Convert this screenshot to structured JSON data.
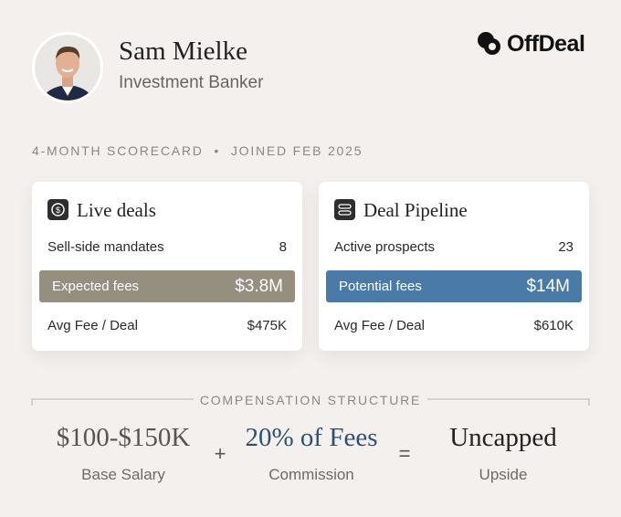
{
  "profile": {
    "name": "Sam Mielke",
    "role": "Investment Banker"
  },
  "logo": {
    "text": "OffDeal"
  },
  "scorecard": {
    "period": "4-MONTH SCORECARD",
    "separator": "•",
    "joined": "JOINED FEB 2025"
  },
  "cards": [
    {
      "title": "Live deals",
      "rows": [
        [
          "Sell-side mandates",
          "8"
        ],
        [
          "Expected fees",
          "$3.8M"
        ],
        [
          "Avg Fee / Deal",
          "$475K"
        ]
      ]
    },
    {
      "title": "Deal Pipeline",
      "rows": [
        [
          "Active prospects",
          "23"
        ],
        [
          "Potential fees",
          "$14M"
        ],
        [
          "Avg Fee / Deal",
          "$610K"
        ]
      ]
    }
  ],
  "compensation": {
    "title": "COMPENSATION STRUCTURE",
    "items": [
      {
        "value": "$100-$150K",
        "label": "Base Salary"
      },
      {
        "value": "20% of Fees",
        "label": "Commission"
      },
      {
        "value": "Uncapped",
        "label": "Upside"
      }
    ],
    "operators": [
      "+",
      "="
    ]
  }
}
